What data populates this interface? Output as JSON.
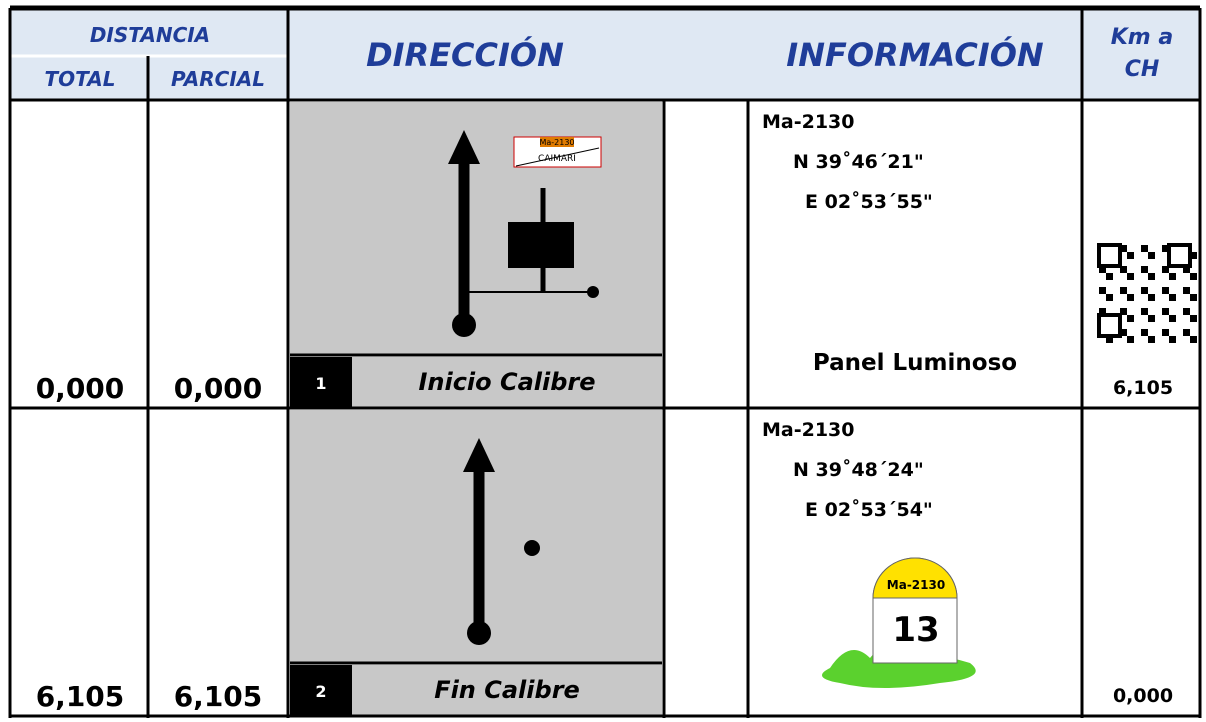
{
  "header": {
    "distancia": "DISTANCIA",
    "total": "TOTAL",
    "parcial": "PARCIAL",
    "direccion": "DIRECCIÓN",
    "informacion": "INFORMACIÓN",
    "km": "Km a CH"
  },
  "rows": [
    {
      "total": "0,000",
      "parcial": "0,000",
      "number": "1",
      "label": "Inicio Calibre",
      "road": "Ma-2130",
      "north": "N 39˚46´21\"",
      "east": "E 02˚53´55\"",
      "note": "Panel Luminoso",
      "km": "6,105",
      "sign_top": "Ma-2130",
      "sign_name": "CAIMARI"
    },
    {
      "total": "6,105",
      "parcial": "6,105",
      "number": "2",
      "label": "Fin Calibre",
      "road": "Ma-2130",
      "north": "N 39˚48´24\"",
      "east": "E 02˚53´54\"",
      "km": "0,000",
      "milestone_road": "Ma-2130",
      "milestone_km": "13"
    }
  ]
}
